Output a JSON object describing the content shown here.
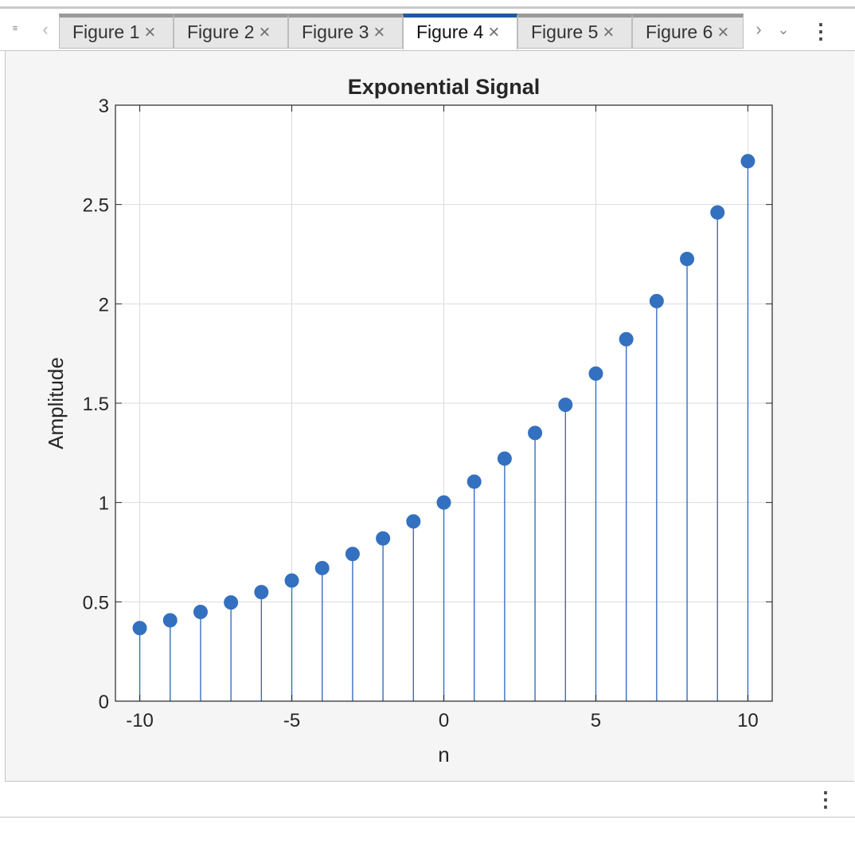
{
  "tabs": [
    {
      "label": "Figure 1",
      "active": false
    },
    {
      "label": "Figure 2",
      "active": false
    },
    {
      "label": "Figure 3",
      "active": false
    },
    {
      "label": "Figure 4",
      "active": true
    },
    {
      "label": "Figure 5",
      "active": false
    },
    {
      "label": "Figure 6",
      "active": false
    }
  ],
  "icons": {
    "tab_menu": "list-menu-icon",
    "scroll_left": "chevron-left-icon",
    "scroll_right": "chevron-right-icon",
    "dropdown": "chevron-down-icon",
    "kebab": "more-vertical-icon",
    "close": "close-icon"
  },
  "colors": {
    "stem": "#3470c0",
    "marker": "#3470c0",
    "active_tab": "#1f5a9e"
  },
  "chart_data": {
    "type": "stem",
    "title": "Exponential Signal",
    "xlabel": "n",
    "ylabel": "Amplitude",
    "xlim": [
      -10.8,
      10.8
    ],
    "ylim": [
      0,
      3
    ],
    "xticks": [
      -10,
      -5,
      0,
      5,
      10
    ],
    "xtick_labels": [
      "-10",
      "-5",
      "0",
      "5",
      "10"
    ],
    "yticks": [
      0,
      0.5,
      1,
      1.5,
      2,
      2.5,
      3
    ],
    "ytick_labels": [
      "0",
      "0.5",
      "1",
      "1.5",
      "2",
      "2.5",
      "3"
    ],
    "grid": true,
    "x": [
      -10,
      -9,
      -8,
      -7,
      -6,
      -5,
      -4,
      -3,
      -2,
      -1,
      0,
      1,
      2,
      3,
      4,
      5,
      6,
      7,
      8,
      9,
      10
    ],
    "y": [
      0.368,
      0.407,
      0.449,
      0.497,
      0.549,
      0.607,
      0.67,
      0.741,
      0.819,
      0.905,
      1.0,
      1.105,
      1.221,
      1.35,
      1.492,
      1.649,
      1.822,
      2.014,
      2.226,
      2.46,
      2.718
    ]
  }
}
